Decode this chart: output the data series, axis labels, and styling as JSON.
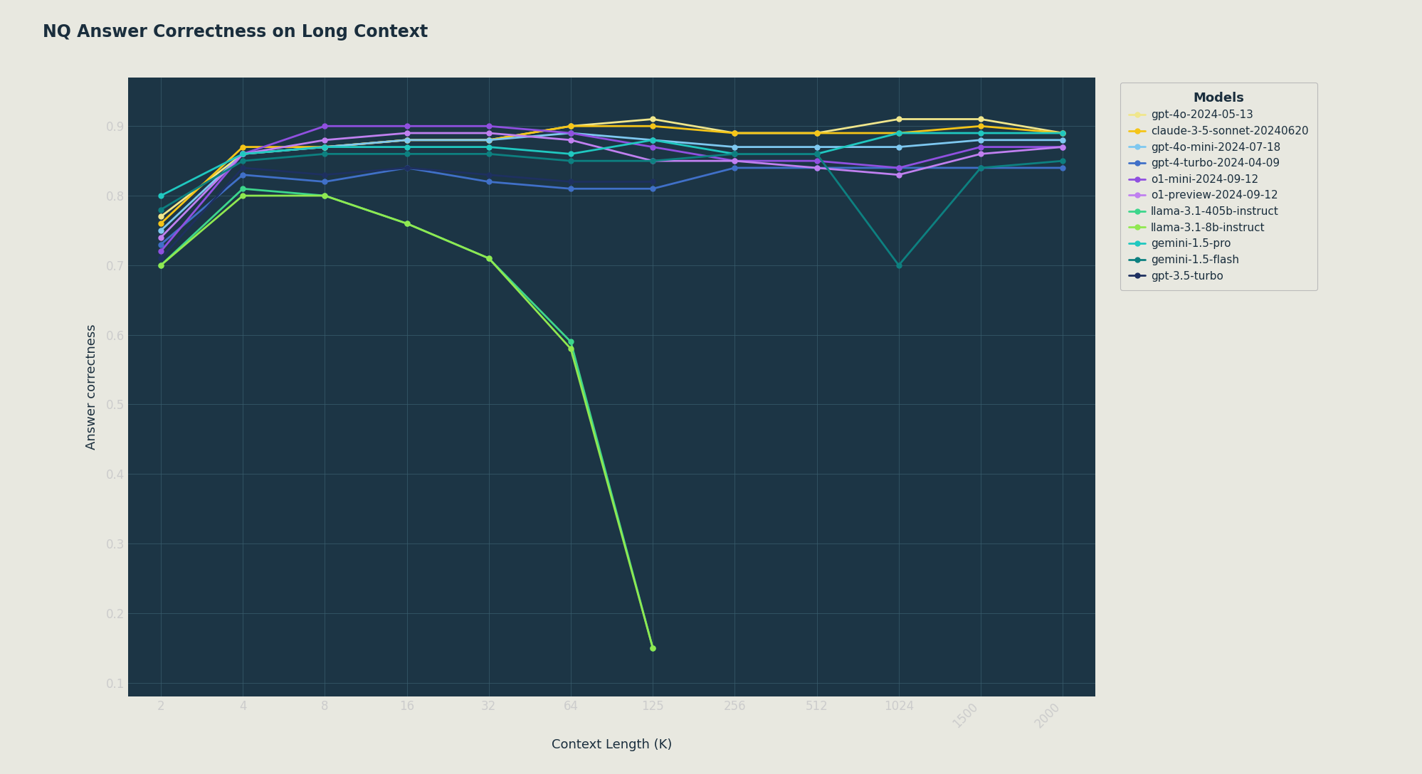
{
  "title": "NQ Answer Correctness on Long Context",
  "xlabel": "Context Length (K)",
  "ylabel": "Answer correctness",
  "background_color": "#e8e8e0",
  "plot_background_color": "#1c3545",
  "grid_color": "#2e5060",
  "text_color": "#1a2e3d",
  "tick_label_color": "#cccccc",
  "x_ticks": [
    2,
    4,
    8,
    16,
    32,
    64,
    125,
    256,
    512,
    1024,
    1500,
    2000
  ],
  "ylim": [
    0.08,
    0.97
  ],
  "yticks": [
    0.1,
    0.2,
    0.3,
    0.4,
    0.5,
    0.6,
    0.7,
    0.8,
    0.9
  ],
  "models": [
    {
      "name": "gpt-4o-2024-05-13",
      "color": "#f0e68c",
      "marker": "o",
      "values": [
        0.77,
        0.86,
        0.87,
        0.88,
        0.88,
        0.9,
        0.91,
        0.89,
        0.89,
        0.91,
        0.91,
        0.89
      ]
    },
    {
      "name": "claude-3-5-sonnet-20240620",
      "color": "#f5c518",
      "marker": "o",
      "values": [
        0.76,
        0.87,
        0.87,
        0.88,
        0.88,
        0.9,
        0.9,
        0.89,
        0.89,
        0.89,
        0.9,
        0.89
      ]
    },
    {
      "name": "gpt-4o-mini-2024-07-18",
      "color": "#7ec8f0",
      "marker": "o",
      "values": [
        0.75,
        0.86,
        0.87,
        0.88,
        0.88,
        0.89,
        0.88,
        0.87,
        0.87,
        0.87,
        0.88,
        0.88
      ]
    },
    {
      "name": "gpt-4-turbo-2024-04-09",
      "color": "#4070c8",
      "marker": "o",
      "values": [
        0.73,
        0.83,
        0.82,
        0.84,
        0.82,
        0.81,
        0.81,
        0.84,
        0.84,
        0.84,
        0.84,
        0.84
      ]
    },
    {
      "name": "o1-mini-2024-09-12",
      "color": "#9050e0",
      "marker": "o",
      "values": [
        0.72,
        0.86,
        0.9,
        0.9,
        0.9,
        0.89,
        0.87,
        0.85,
        0.85,
        0.84,
        0.87,
        0.87
      ]
    },
    {
      "name": "o1-preview-2024-09-12",
      "color": "#c080f0",
      "marker": "o",
      "values": [
        0.74,
        0.86,
        0.88,
        0.89,
        0.89,
        0.88,
        0.85,
        0.85,
        0.84,
        0.83,
        0.86,
        0.87
      ]
    },
    {
      "name": "llama-3.1-405b-instruct",
      "color": "#3dd68c",
      "marker": "o",
      "values": [
        0.7,
        0.81,
        0.8,
        0.76,
        0.71,
        0.59,
        0.15,
        null,
        null,
        null,
        null,
        null
      ]
    },
    {
      "name": "llama-3.1-8b-instruct",
      "color": "#90e850",
      "marker": "o",
      "values": [
        0.7,
        0.8,
        0.8,
        0.76,
        0.71,
        0.58,
        0.15,
        null,
        null,
        null,
        null,
        null
      ]
    },
    {
      "name": "gemini-1.5-pro",
      "color": "#20c8c0",
      "marker": "o",
      "values": [
        0.8,
        0.86,
        0.87,
        0.87,
        0.87,
        0.86,
        0.88,
        0.86,
        0.86,
        0.89,
        0.89,
        0.89
      ]
    },
    {
      "name": "gemini-1.5-flash",
      "color": "#0d8080",
      "marker": "o",
      "values": [
        0.78,
        0.85,
        0.86,
        0.86,
        0.86,
        0.85,
        0.85,
        0.86,
        0.86,
        0.7,
        0.84,
        0.85
      ]
    },
    {
      "name": "gpt-3.5-turbo",
      "color": "#1e3060",
      "marker": "o",
      "values": [
        0.71,
        0.84,
        0.83,
        0.84,
        0.83,
        0.82,
        0.82,
        null,
        null,
        null,
        null,
        null
      ]
    }
  ]
}
